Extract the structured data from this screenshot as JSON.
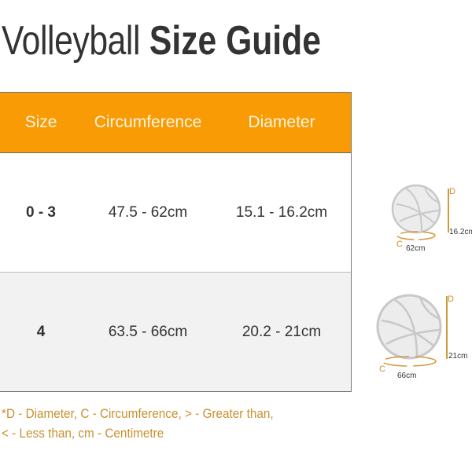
{
  "title": {
    "light": "Volleyball",
    "bold": "Size Guide"
  },
  "table": {
    "headers": [
      "Size",
      "Circumference",
      "Diameter"
    ],
    "rows": [
      {
        "size": "0 - 3",
        "circumference": "47.5 - 62cm",
        "diameter": "15.1 - 16.2cm"
      },
      {
        "size": "4",
        "circumference": "63.5 - 66cm",
        "diameter": "20.2 - 21cm"
      }
    ]
  },
  "illustrations": [
    {
      "d_label": "D",
      "diameter": "16.2cm",
      "c_label": "C",
      "circumference": "62cm"
    },
    {
      "d_label": "D",
      "diameter": "21cm",
      "c_label": "C",
      "circumference": "66cm"
    }
  ],
  "footnote": {
    "line1": "*D - Diameter, C - Circumference, > - Greater than,",
    "line2": "< - Less than, cm - Centimetre"
  },
  "colors": {
    "header": "#f99b05",
    "accent": "#c8912f",
    "alt_row": "#f2f2f2"
  }
}
